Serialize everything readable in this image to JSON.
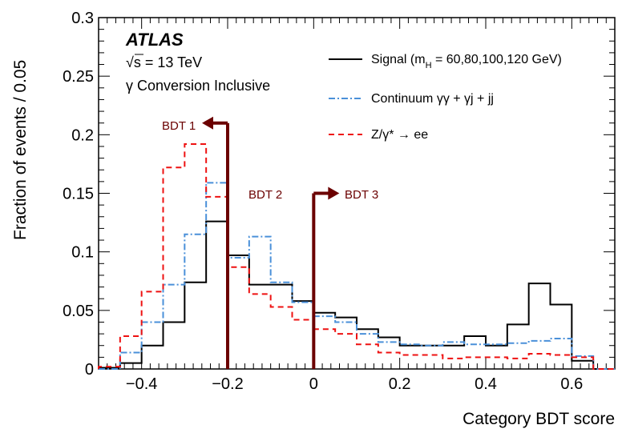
{
  "chart_data": {
    "type": "histogram",
    "xlabel": "Category BDT score",
    "ylabel": "Fraction of events / 0.05",
    "xlim": [
      -0.5,
      0.7
    ],
    "ylim": [
      0,
      0.3
    ],
    "xticks": [
      -0.4,
      -0.2,
      0,
      0.2,
      0.4,
      0.6
    ],
    "xtick_labels": [
      "−0.4",
      "−0.2",
      "0",
      "0.2",
      "0.4",
      "0.6"
    ],
    "yticks": [
      0,
      0.05,
      0.1,
      0.15,
      0.2,
      0.25,
      0.3
    ],
    "ytick_labels": [
      "0",
      "0.05",
      "0.1",
      "0.15",
      "0.2",
      "0.25",
      "0.3"
    ],
    "bin_edges": [
      -0.5,
      -0.45,
      -0.4,
      -0.35,
      -0.3,
      -0.25,
      -0.2,
      -0.15,
      -0.1,
      -0.05,
      0.0,
      0.05,
      0.1,
      0.15,
      0.2,
      0.25,
      0.3,
      0.35,
      0.4,
      0.45,
      0.5,
      0.55,
      0.6,
      0.65,
      0.7
    ],
    "series": [
      {
        "name": "Signal (m_H = 60,80,100,120 GeV)",
        "color": "#000000",
        "style": "solid",
        "values": [
          0.001,
          0.005,
          0.02,
          0.04,
          0.074,
          0.126,
          0.097,
          0.072,
          0.072,
          0.058,
          0.048,
          0.044,
          0.034,
          0.027,
          0.02,
          0.02,
          0.02,
          0.028,
          0.02,
          0.038,
          0.073,
          0.055,
          0.007,
          0.0
        ]
      },
      {
        "name": "Continuum γγ + γj + jj",
        "color": "#4a90d9",
        "style": "dashdot",
        "values": [
          0.0,
          0.014,
          0.04,
          0.072,
          0.115,
          0.159,
          0.095,
          0.113,
          0.074,
          0.057,
          0.045,
          0.04,
          0.03,
          0.023,
          0.021,
          0.02,
          0.023,
          0.021,
          0.021,
          0.022,
          0.024,
          0.026,
          0.011,
          0.0
        ]
      },
      {
        "name": "Z/γ* → ee",
        "color": "#ee1111",
        "style": "dashed",
        "values": [
          0.002,
          0.028,
          0.066,
          0.172,
          0.192,
          0.147,
          0.087,
          0.064,
          0.053,
          0.042,
          0.034,
          0.03,
          0.021,
          0.014,
          0.012,
          0.012,
          0.009,
          0.01,
          0.01,
          0.009,
          0.013,
          0.012,
          0.01,
          0.0
        ]
      }
    ],
    "cuts": [
      {
        "x": -0.2,
        "top": 0.21,
        "direction": "left",
        "label": "BDT 1"
      },
      {
        "x": 0.0,
        "top": 0.15,
        "direction": "right",
        "label": "BDT 3"
      }
    ],
    "cut_between_label": "BDT 2",
    "cut_color": "#6b0000",
    "legend_position": "top-right",
    "annotations": {
      "atlas": "ATLAS",
      "energy": "s = 13 TeV",
      "sqrt_symbol": "√",
      "category": "γ Conversion Inclusive"
    },
    "legend": [
      {
        "label": "Signal (m",
        "sub": "H",
        "rest": " = 60,80,100,120 GeV)"
      },
      {
        "label": "Continuum γγ + γj + jj"
      },
      {
        "label": "Z/γ* → ee"
      }
    ]
  }
}
